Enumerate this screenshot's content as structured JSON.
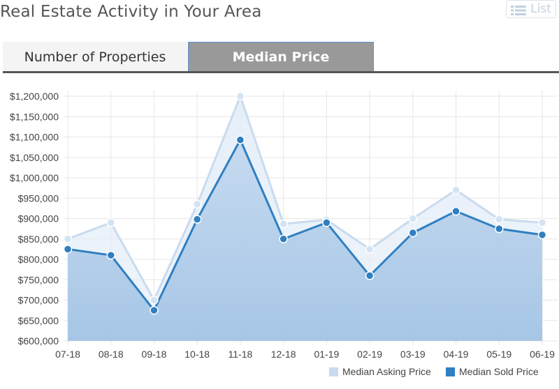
{
  "header": {
    "title": "Real Estate Activity in Your Area",
    "list_button_label": "List",
    "list_icon": "list-icon"
  },
  "tabs": [
    {
      "label": "Number of Properties",
      "active": false
    },
    {
      "label": "Median Price",
      "active": true
    }
  ],
  "colors": {
    "asking": "#c9dbee",
    "sold": "#2f7fc1",
    "fill_top": "#c4d9ef",
    "fill_bottom": "#a3c4e5",
    "grid": "#e6e6e6",
    "tab_active_bg": "#999999",
    "tab_active_border": "#5b8fd6"
  },
  "chart_data": {
    "type": "line",
    "categories": [
      "07-18",
      "08-18",
      "09-18",
      "10-18",
      "11-18",
      "12-18",
      "01-19",
      "02-19",
      "03-19",
      "04-19",
      "05-19",
      "06-19"
    ],
    "series": [
      {
        "name": "Median Asking Price",
        "values": [
          850000,
          890000,
          700000,
          935000,
          1200000,
          887000,
          897000,
          825000,
          900000,
          970000,
          898000,
          890000
        ]
      },
      {
        "name": "Median Sold Price",
        "values": [
          825000,
          810000,
          675000,
          898000,
          1093000,
          850000,
          890000,
          760000,
          865000,
          918000,
          875000,
          860000
        ]
      }
    ],
    "ylim": [
      600000,
      1200000
    ],
    "yticks": [
      600000,
      650000,
      700000,
      750000,
      800000,
      850000,
      900000,
      950000,
      1000000,
      1050000,
      1100000,
      1150000,
      1200000
    ],
    "grid": true,
    "legend": "bottom-right"
  }
}
